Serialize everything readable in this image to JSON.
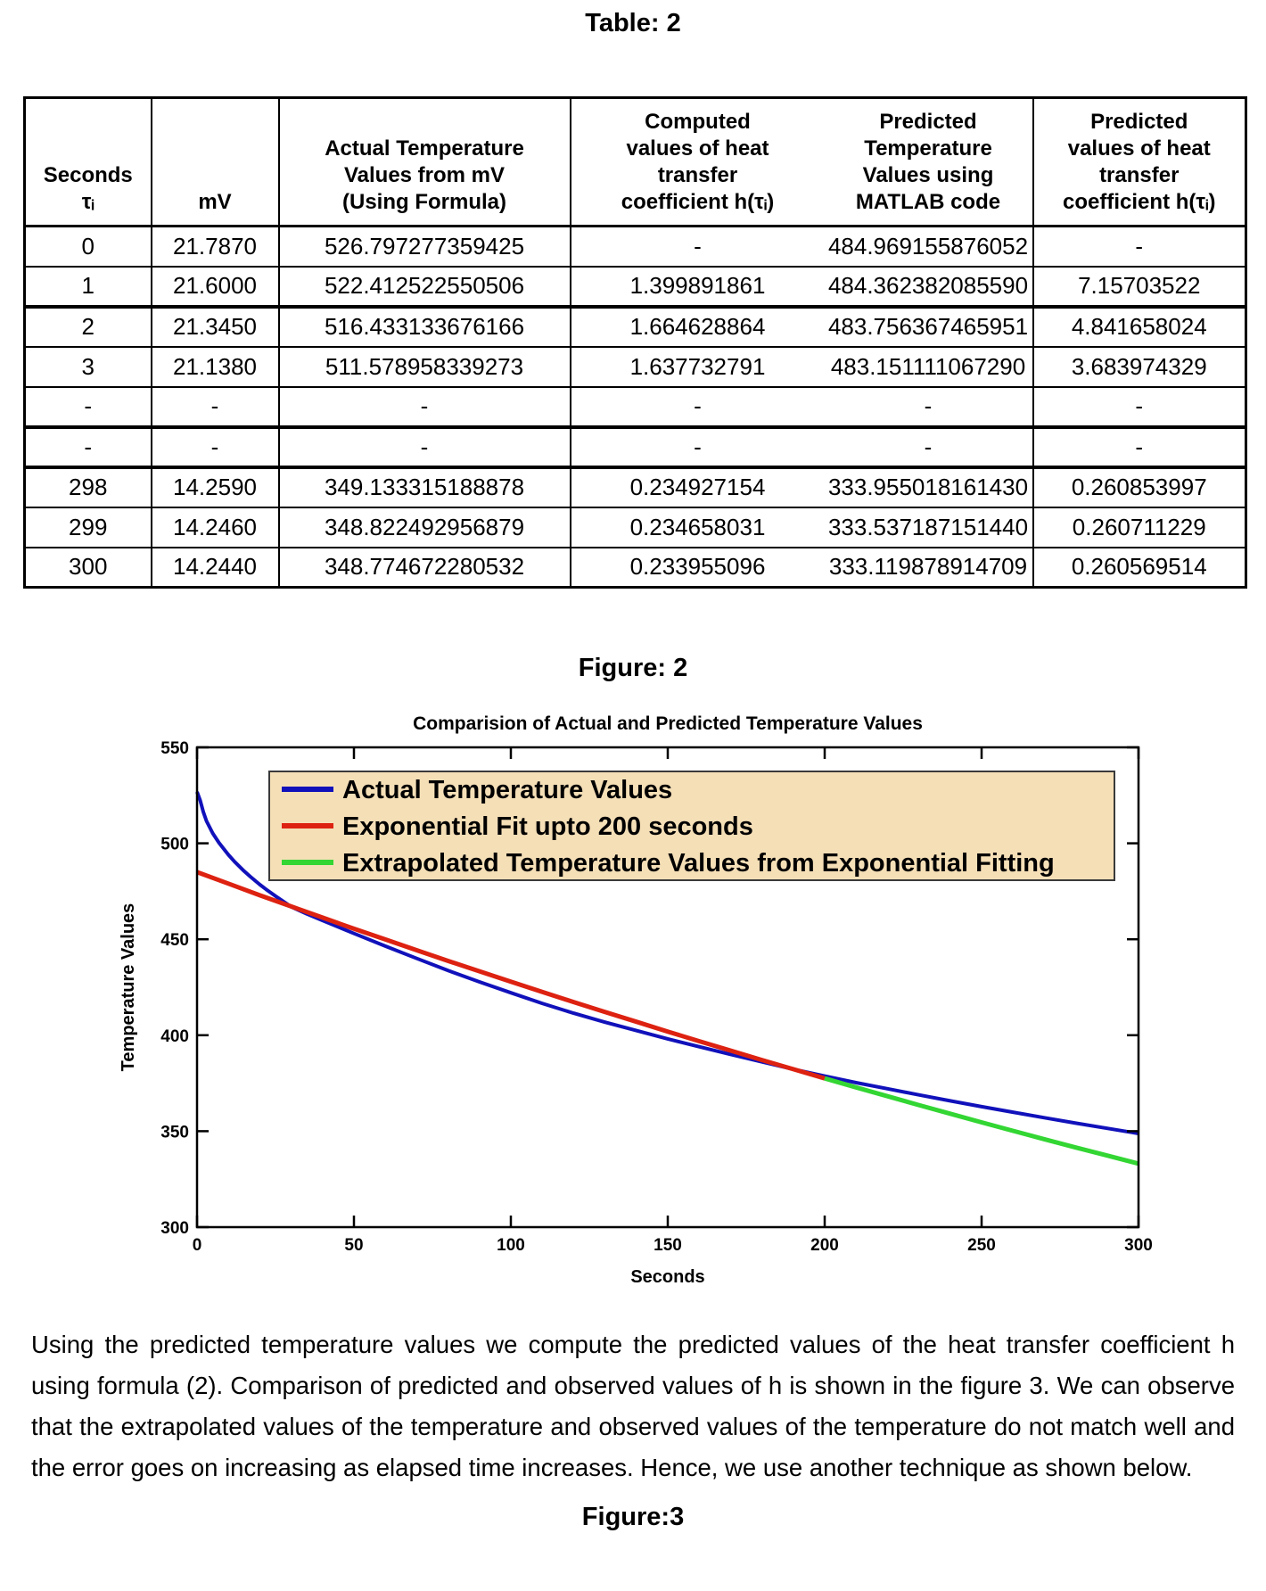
{
  "page": {
    "table_title": "Table: 2",
    "figure2_title": "Figure: 2",
    "figure3_title": "Figure:3",
    "paragraph": "Using the predicted temperature values we compute the predicted values of the heat transfer coefficient h using formula (2). Comparison of predicted and observed values of h is shown in the figure 3. We can observe that the extrapolated values of the temperature and observed values of the temperature do not match well and the error goes on increasing as elapsed time increases. Hence, we use another technique as shown below."
  },
  "table": {
    "headers": [
      "Seconds\nτᵢ",
      "mV",
      "Actual Temperature\nValues from mV\n(Using Formula)",
      "Computed\nvalues of heat\ntransfer\ncoefficient h(τᵢ)",
      "Predicted\nTemperature\nValues using\nMATLAB code",
      "Predicted\nvalues of heat\ntransfer\ncoefficient h(τᵢ)"
    ],
    "rows": [
      [
        "0",
        "21.7870",
        "526.797277359425",
        "-",
        "484.969155876052",
        "-"
      ],
      [
        "1",
        "21.6000",
        "522.412522550506",
        "1.399891861",
        "484.362382085590",
        "7.15703522"
      ],
      [
        "2",
        "21.3450",
        "516.433133676166",
        "1.664628864",
        "483.756367465951",
        "4.841658024"
      ],
      [
        "3",
        "21.1380",
        "511.578958339273",
        "1.637732791",
        "483.151111067290",
        "3.683974329"
      ],
      [
        "-",
        "-",
        "-",
        "-",
        "-",
        "-"
      ],
      [
        "-",
        "-",
        "-",
        "-",
        "-",
        "-"
      ],
      [
        "298",
        "14.2590",
        "349.133315188878",
        "0.234927154",
        "333.955018161430",
        "0.260853997"
      ],
      [
        "299",
        "14.2460",
        "348.822492956879",
        "0.234658031",
        "333.537187151440",
        "0.260711229"
      ],
      [
        "300",
        "14.2440",
        "348.774672280532",
        "0.233955096",
        "333.119878914709",
        "0.260569514"
      ]
    ]
  },
  "chart_data": {
    "type": "line",
    "title": "Comparision of Actual and Predicted Temperature Values",
    "xlabel": "Seconds",
    "ylabel": "Temperature Values",
    "xlim": [
      0,
      300
    ],
    "ylim": [
      300,
      550
    ],
    "xticks": [
      0,
      50,
      100,
      150,
      200,
      250,
      300
    ],
    "yticks": [
      300,
      350,
      400,
      450,
      500,
      550
    ],
    "grid": false,
    "legend_position": "top-left-inside",
    "legend_bg": "#F5DFB7",
    "legend_border": "#3a3a3a",
    "axis_color": "#000000",
    "series": [
      {
        "name": "Actual Temperature Values",
        "color": "#1111BB",
        "width": 4,
        "x": [
          0,
          1,
          2,
          3,
          5,
          7,
          10,
          12,
          15,
          17,
          20,
          22,
          25,
          27,
          30,
          35,
          40,
          50,
          60,
          70,
          80,
          90,
          100,
          110,
          120,
          130,
          140,
          150,
          160,
          170,
          180,
          190,
          200,
          210,
          220,
          230,
          240,
          250,
          260,
          270,
          280,
          290,
          300
        ],
        "y": [
          526.8,
          522.4,
          516.4,
          511.6,
          505.2,
          500.3,
          494.0,
          490.4,
          485.5,
          482.6,
          478.5,
          476.0,
          472.5,
          470.3,
          466.9,
          463.2,
          459.8,
          453.0,
          446.4,
          440.0,
          433.7,
          427.8,
          422.1,
          416.6,
          411.5,
          406.8,
          402.4,
          398.1,
          394.0,
          390.0,
          386.1,
          382.3,
          378.7,
          375.3,
          372.1,
          368.9,
          365.8,
          362.8,
          359.9,
          357.0,
          354.2,
          351.5,
          348.8
        ]
      },
      {
        "name": "Exponential Fit upto 200 seconds",
        "color": "#DD2211",
        "width": 5,
        "x": [
          0,
          10,
          20,
          30,
          40,
          50,
          60,
          70,
          80,
          90,
          100,
          110,
          120,
          130,
          140,
          150,
          160,
          170,
          180,
          190,
          200
        ],
        "y": [
          485.0,
          479.0,
          472.9,
          467.1,
          461.3,
          455.5,
          449.9,
          444.3,
          438.7,
          433.3,
          427.9,
          422.6,
          417.3,
          412.1,
          407.0,
          401.9,
          396.9,
          392.0,
          387.1,
          382.3,
          377.5
        ]
      },
      {
        "name": "Extrapolated Temperature Values from Exponential Fitting",
        "color": "#33D633",
        "width": 5,
        "x": [
          200,
          210,
          220,
          230,
          240,
          250,
          260,
          270,
          280,
          290,
          300
        ],
        "y": [
          377.5,
          372.8,
          368.2,
          363.6,
          359.1,
          354.6,
          350.2,
          345.8,
          341.5,
          337.3,
          333.1
        ]
      }
    ]
  }
}
